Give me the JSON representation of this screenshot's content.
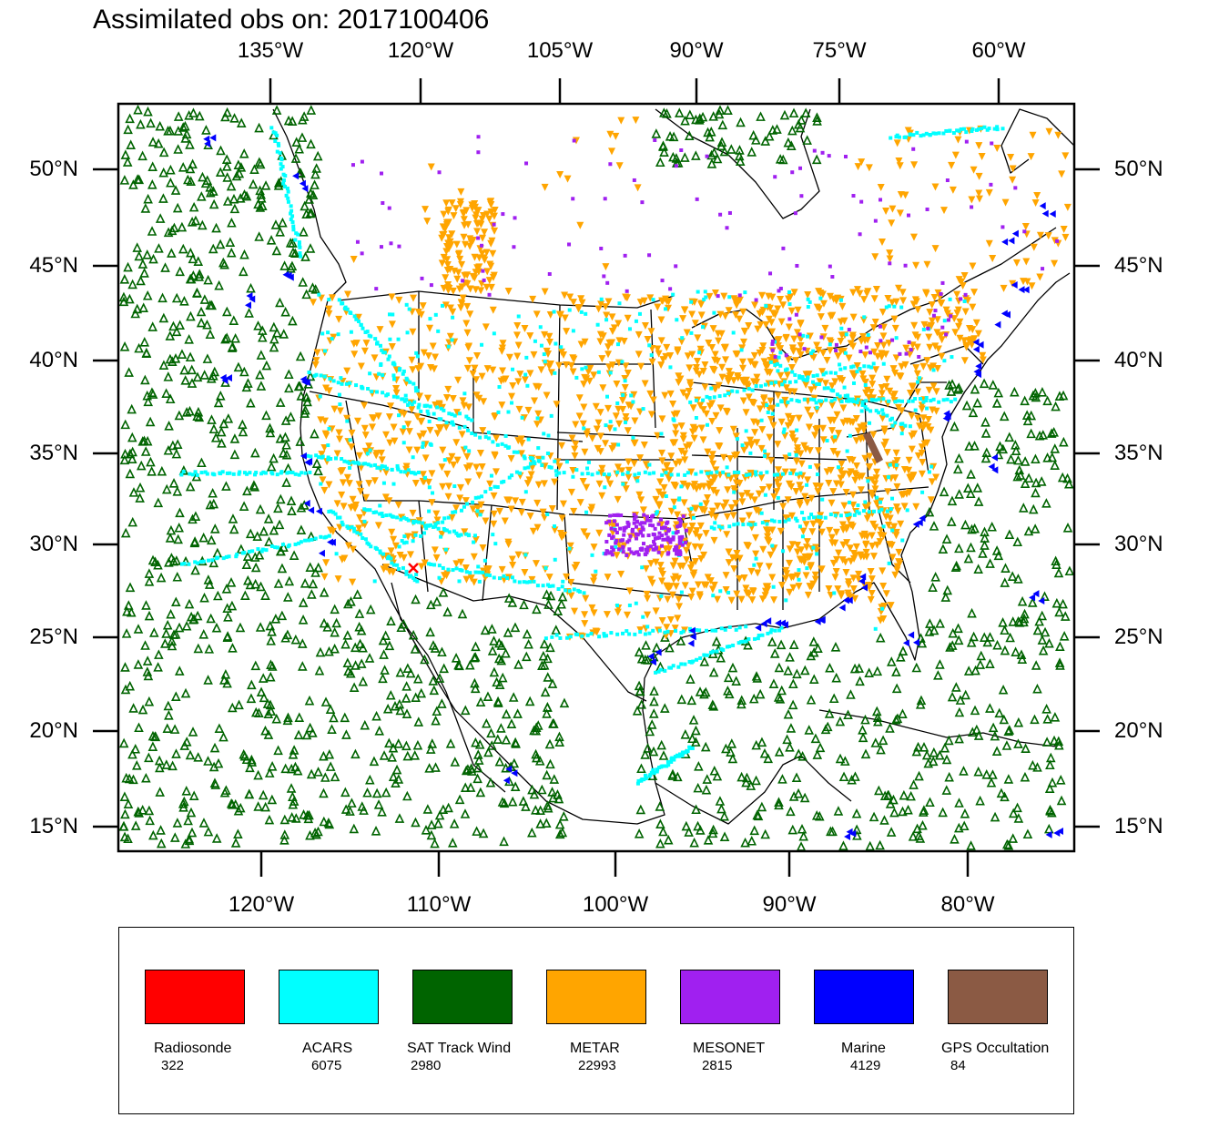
{
  "title": "Assimilated obs on: 2017100406",
  "axes": {
    "top_labels": [
      "135°W",
      "120°W",
      "105°W",
      "90°W",
      "75°W",
      "60°W"
    ],
    "bottom_labels": [
      "120°W",
      "110°W",
      "100°W",
      "90°W",
      "80°W"
    ],
    "left_labels": [
      "50°N",
      "45°N",
      "40°N",
      "35°N",
      "30°N",
      "25°N",
      "20°N",
      "15°N"
    ],
    "right_labels": [
      "50°N",
      "45°N",
      "40°N",
      "35°N",
      "30°N",
      "25°N",
      "20°N",
      "15°N"
    ]
  },
  "legend": [
    {
      "name": "Radiosonde",
      "count": "322",
      "color": "#ff0000"
    },
    {
      "name": "ACARS",
      "count": "6075",
      "color": "#00ffff"
    },
    {
      "name": "SAT Track Wind",
      "count": "2980",
      "color": "#006400"
    },
    {
      "name": "METAR",
      "count": "22993",
      "color": "#ffa500"
    },
    {
      "name": "MESONET",
      "count": "2815",
      "color": "#a020f0"
    },
    {
      "name": "Marine",
      "count": "4129",
      "color": "#0000ff"
    },
    {
      "name": "GPS Occultation",
      "count": "84",
      "color": "#8b5a44"
    }
  ]
}
